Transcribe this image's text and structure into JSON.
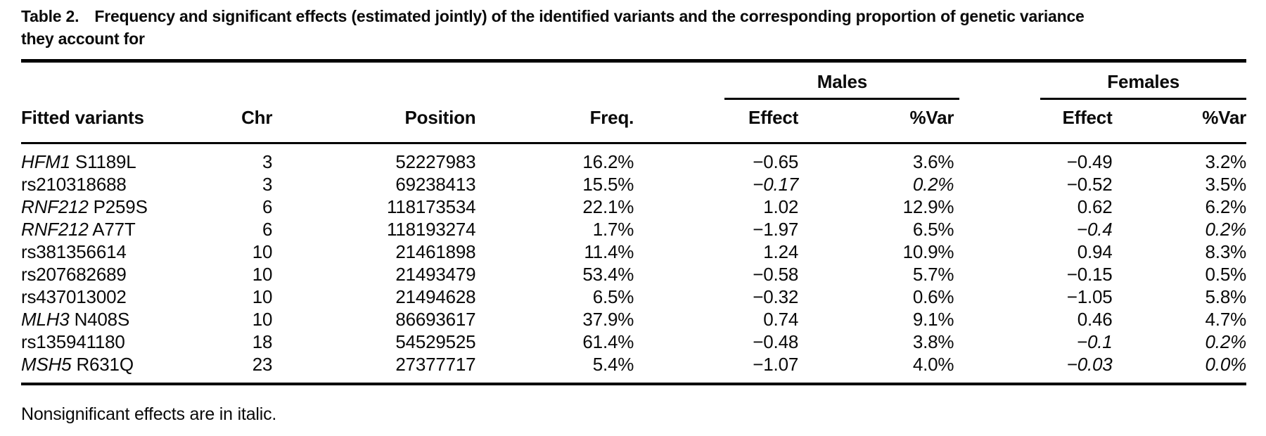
{
  "caption": {
    "label": "Table 2.",
    "line1": "Frequency and significant effects (estimated jointly) of the identified variants and the corresponding proportion of genetic variance",
    "line2": "they account for"
  },
  "table": {
    "group_headers": {
      "males": "Males",
      "females": "Females"
    },
    "columns": {
      "variants": "Fitted variants",
      "chr": "Chr",
      "position": "Position",
      "freq": "Freq.",
      "effect": "Effect",
      "pct_var": "%Var"
    },
    "rows": [
      {
        "variant": {
          "gene": "HFM1",
          "code": "S1189L"
        },
        "chr": "3",
        "position": "52227983",
        "freq": "16.2%",
        "males": {
          "effect": "−0.65",
          "pct_var": "3.6%",
          "nonsignificant": false
        },
        "females": {
          "effect": "−0.49",
          "pct_var": "3.2%",
          "nonsignificant": false
        }
      },
      {
        "variant": {
          "gene": "",
          "code": "rs210318688"
        },
        "chr": "3",
        "position": "69238413",
        "freq": "15.5%",
        "males": {
          "effect": "−0.17",
          "pct_var": "0.2%",
          "nonsignificant": true
        },
        "females": {
          "effect": "−0.52",
          "pct_var": "3.5%",
          "nonsignificant": false
        }
      },
      {
        "variant": {
          "gene": "RNF212",
          "code": "P259S"
        },
        "chr": "6",
        "position": "118173534",
        "freq": "22.1%",
        "males": {
          "effect": "1.02",
          "pct_var": "12.9%",
          "nonsignificant": false
        },
        "females": {
          "effect": "0.62",
          "pct_var": "6.2%",
          "nonsignificant": false
        }
      },
      {
        "variant": {
          "gene": "RNF212",
          "code": "A77T"
        },
        "chr": "6",
        "position": "118193274",
        "freq": "1.7%",
        "males": {
          "effect": "−1.97",
          "pct_var": "6.5%",
          "nonsignificant": false
        },
        "females": {
          "effect": "−0.4",
          "pct_var": "0.2%",
          "nonsignificant": true
        }
      },
      {
        "variant": {
          "gene": "",
          "code": "rs381356614"
        },
        "chr": "10",
        "position": "21461898",
        "freq": "11.4%",
        "males": {
          "effect": "1.24",
          "pct_var": "10.9%",
          "nonsignificant": false
        },
        "females": {
          "effect": "0.94",
          "pct_var": "8.3%",
          "nonsignificant": false
        }
      },
      {
        "variant": {
          "gene": "",
          "code": "rs207682689"
        },
        "chr": "10",
        "position": "21493479",
        "freq": "53.4%",
        "males": {
          "effect": "−0.58",
          "pct_var": "5.7%",
          "nonsignificant": false
        },
        "females": {
          "effect": "−0.15",
          "pct_var": "0.5%",
          "nonsignificant": false
        }
      },
      {
        "variant": {
          "gene": "",
          "code": "rs437013002"
        },
        "chr": "10",
        "position": "21494628",
        "freq": "6.5%",
        "males": {
          "effect": "−0.32",
          "pct_var": "0.6%",
          "nonsignificant": false
        },
        "females": {
          "effect": "−1.05",
          "pct_var": "5.8%",
          "nonsignificant": false
        }
      },
      {
        "variant": {
          "gene": "MLH3",
          "code": "N408S"
        },
        "chr": "10",
        "position": "86693617",
        "freq": "37.9%",
        "males": {
          "effect": "0.74",
          "pct_var": "9.1%",
          "nonsignificant": false
        },
        "females": {
          "effect": "0.46",
          "pct_var": "4.7%",
          "nonsignificant": false
        }
      },
      {
        "variant": {
          "gene": "",
          "code": "rs135941180"
        },
        "chr": "18",
        "position": "54529525",
        "freq": "61.4%",
        "males": {
          "effect": "−0.48",
          "pct_var": "3.8%",
          "nonsignificant": false
        },
        "females": {
          "effect": "−0.1",
          "pct_var": "0.2%",
          "nonsignificant": true
        }
      },
      {
        "variant": {
          "gene": "MSH5",
          "code": "R631Q"
        },
        "chr": "23",
        "position": "27377717",
        "freq": "5.4%",
        "males": {
          "effect": "−1.07",
          "pct_var": "4.0%",
          "nonsignificant": false
        },
        "females": {
          "effect": "−0.03",
          "pct_var": "0.0%",
          "nonsignificant": true
        }
      }
    ],
    "footnote": "Nonsignificant effects are in italic."
  }
}
